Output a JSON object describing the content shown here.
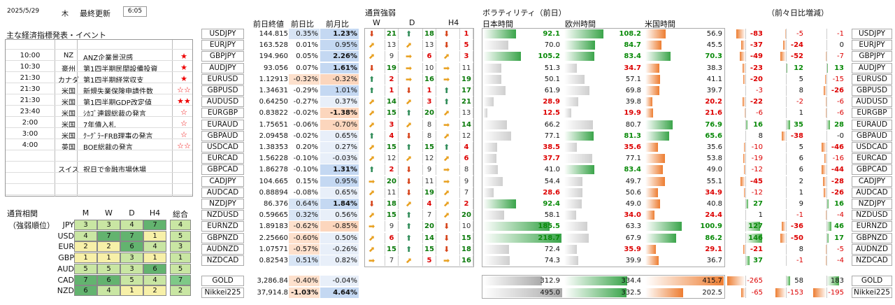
{
  "header": {
    "date": "2025/5/29",
    "weekday": "木",
    "updated_label": "最終更新",
    "time": "6:05"
  },
  "events": {
    "title": "主な経済指標発表・イベント",
    "rows": [
      {
        "time": "10:00",
        "country": "NZ",
        "event": "ANZ企業景況感",
        "stars": "★"
      },
      {
        "time": "10:30",
        "country": "豪州",
        "event": "第1四半期民間設備投資",
        "stars": "★"
      },
      {
        "time": "21:30",
        "country": "カナダ",
        "event": "第1四半期経常収支",
        "stars": "★"
      },
      {
        "time": "21:30",
        "country": "米国",
        "event": "新規失業保険申請件数",
        "stars": "☆☆"
      },
      {
        "time": "21:30",
        "country": "米国",
        "event": "第1四半期GDP改定値",
        "stars": "★★"
      },
      {
        "time": "23:40",
        "country": "米国",
        "event": "ｼｶｺﾞ連銀総裁の発言",
        "stars": "☆"
      },
      {
        "time": "2:00",
        "country": "米国",
        "event": "7年債入札",
        "stars": "☆"
      },
      {
        "time": "3:00",
        "country": "米国",
        "event": "ｸｰｸﾞﾗｰFRB理事の発言",
        "stars": "☆"
      },
      {
        "time": "4:00",
        "country": "英国",
        "event": "BOE総裁の発言",
        "stars": "☆☆"
      },
      {
        "time": "",
        "country": "",
        "event": "",
        "stars": ""
      },
      {
        "time": "",
        "country": "スイス",
        "event": "祝日で金融市場休場",
        "stars": ""
      },
      {
        "time": "",
        "country": "",
        "event": "",
        "stars": ""
      },
      {
        "time": "",
        "country": "",
        "event": "",
        "stars": ""
      }
    ]
  },
  "currency_strength": {
    "title": "通貨相関",
    "subtitle": "（強弱順位）",
    "cols": [
      "M",
      "W",
      "D",
      "H4",
      "総合"
    ],
    "rows": [
      {
        "ccy": "JPY",
        "vals": [
          "3",
          "3",
          "4",
          "7",
          "4"
        ]
      },
      {
        "ccy": "USD",
        "vals": [
          "4",
          "7",
          "7",
          "1",
          "5"
        ]
      },
      {
        "ccy": "EUR",
        "vals": [
          "2",
          "2",
          "6",
          "4",
          "3"
        ]
      },
      {
        "ccy": "GBP",
        "vals": [
          "1",
          "1",
          "3",
          "1",
          "1"
        ]
      },
      {
        "ccy": "AUD",
        "vals": [
          "5",
          "5",
          "3",
          "6",
          "5"
        ]
      },
      {
        "ccy": "CAD",
        "vals": [
          "7",
          "6",
          "5",
          "4",
          "7"
        ]
      },
      {
        "ccy": "NZD",
        "vals": [
          "6",
          "4",
          "1",
          "2",
          "2"
        ]
      }
    ]
  },
  "prices": {
    "headers": [
      "前日終値",
      "前日比",
      "前月比"
    ],
    "rows": [
      {
        "pair": "USDJPY",
        "close": "144.815",
        "d": "0.35%",
        "m": "1.23%"
      },
      {
        "pair": "EURJPY",
        "close": "163.528",
        "d": "0.01%",
        "m": "0.95%"
      },
      {
        "pair": "GBPJPY",
        "close": "194.960",
        "d": "0.05%",
        "m": "2.26%"
      },
      {
        "pair": "AUDJPY",
        "close": "93.056",
        "d": "0.07%",
        "m": "1.61%"
      },
      {
        "pair": "EURUSD",
        "close": "1.12913",
        "d": "-0.32%",
        "m": "-0.32%"
      },
      {
        "pair": "GBPUSD",
        "close": "1.34631",
        "d": "-0.29%",
        "m": "1.01%"
      },
      {
        "pair": "AUDUSD",
        "close": "0.64250",
        "d": "-0.27%",
        "m": "0.37%"
      },
      {
        "pair": "EURGBP",
        "close": "0.83822",
        "d": "-0.02%",
        "m": "-1.38%"
      },
      {
        "pair": "EURAUD",
        "close": "1.75651",
        "d": "-0.06%",
        "m": "-0.70%"
      },
      {
        "pair": "GBPAUD",
        "close": "2.09458",
        "d": "-0.02%",
        "m": "0.65%"
      },
      {
        "pair": "USDCAD",
        "close": "1.38353",
        "d": "0.20%",
        "m": "0.27%"
      },
      {
        "pair": "EURCAD",
        "close": "1.56228",
        "d": "-0.10%",
        "m": "-0.03%"
      },
      {
        "pair": "GBPCAD",
        "close": "1.86278",
        "d": "-0.10%",
        "m": "1.31%"
      },
      {
        "pair": "CADJPY",
        "close": "104.665",
        "d": "0.15%",
        "m": "0.95%"
      },
      {
        "pair": "AUDCAD",
        "close": "0.88894",
        "d": "-0.08%",
        "m": "0.65%"
      },
      {
        "pair": "NZDJPY",
        "close": "86.376",
        "d": "0.64%",
        "m": "1.84%"
      },
      {
        "pair": "NZDUSD",
        "close": "0.59665",
        "d": "0.32%",
        "m": "0.56%"
      },
      {
        "pair": "EURNZD",
        "close": "1.89183",
        "d": "-0.62%",
        "m": "-0.85%"
      },
      {
        "pair": "GBPNZD",
        "close": "2.25660",
        "d": "-0.60%",
        "m": "0.50%"
      },
      {
        "pair": "AUDNZD",
        "close": "1.07571",
        "d": "-0.57%",
        "m": "-0.26%"
      },
      {
        "pair": "NZDCAD",
        "close": "0.82543",
        "d": "0.51%",
        "m": "0.82%"
      }
    ],
    "extra": [
      {
        "pair": "GOLD",
        "close": "3,286.84",
        "d": "-0.40%",
        "m": "-0.04%"
      },
      {
        "pair": "Nikkei225",
        "close": "37,914.8",
        "d": "-1.03%",
        "m": "4.64%"
      }
    ]
  },
  "strength": {
    "title": "通貨強弱",
    "cols": [
      "W",
      "D",
      "H4"
    ],
    "rows": [
      {
        "w": "down",
        "wn": "21",
        "d": "up",
        "dn": "18",
        "h": "down",
        "hn": "1"
      },
      {
        "w": "ne",
        "wn": "13",
        "d": "ne",
        "dn": "13",
        "h": "down",
        "hn": "5"
      },
      {
        "w": "ne",
        "wn": "9",
        "d": "right",
        "dn": "6",
        "h": "ne",
        "hn": "3"
      },
      {
        "w": "down",
        "wn": "19",
        "d": "right",
        "dn": "10",
        "h": "right",
        "hn": "11"
      },
      {
        "w": "up",
        "wn": "2",
        "d": "right",
        "dn": "16",
        "h": "right",
        "hn": "19"
      },
      {
        "w": "up",
        "wn": "1",
        "d": "down",
        "dn": "1",
        "h": "up",
        "hn": "17"
      },
      {
        "w": "ne",
        "wn": "14",
        "d": "ne",
        "dn": "3",
        "h": "up",
        "hn": "21"
      },
      {
        "w": "ne",
        "wn": "15",
        "d": "up",
        "dn": "20",
        "h": "ne",
        "hn": "13"
      },
      {
        "w": "ne",
        "wn": "3",
        "d": "ne",
        "dn": "8",
        "h": "right",
        "hn": "14"
      },
      {
        "w": "up",
        "wn": "4",
        "d": "down",
        "dn": "8",
        "h": "ne",
        "hn": "12"
      },
      {
        "w": "ne",
        "wn": "15",
        "d": "up",
        "dn": "15",
        "h": "up",
        "hn": "4"
      },
      {
        "w": "ne",
        "wn": "12",
        "d": "ne",
        "dn": "12",
        "h": "ne",
        "hn": "6"
      },
      {
        "w": "up",
        "wn": "2",
        "d": "down",
        "dn": "9",
        "h": "right",
        "hn": "8"
      },
      {
        "w": "right",
        "wn": "20",
        "d": "down",
        "dn": "11",
        "h": "right",
        "hn": "9"
      },
      {
        "w": "ne",
        "wn": "11",
        "d": "down",
        "dn": "19",
        "h": "ne",
        "hn": "7"
      },
      {
        "w": "down",
        "wn": "18",
        "d": "ne",
        "dn": "4",
        "h": "ne",
        "hn": "2"
      },
      {
        "w": "ne",
        "wn": "15",
        "d": "up",
        "dn": "7",
        "h": "ne",
        "hn": "20"
      },
      {
        "w": "right",
        "wn": "9",
        "d": "up",
        "dn": "20",
        "h": "down",
        "hn": "10"
      },
      {
        "w": "ne",
        "wn": "6",
        "d": "up",
        "dn": "14",
        "h": "down",
        "hn": "15"
      },
      {
        "w": "ne",
        "wn": "15",
        "d": "up",
        "dn": "15",
        "h": "down",
        "hn": "18"
      },
      {
        "w": "right",
        "wn": "7",
        "d": "ne",
        "dn": "5",
        "h": "right",
        "hn": "16"
      }
    ]
  },
  "volatility": {
    "title": "ボラティリティ（前日）",
    "sessions": [
      "日本時間",
      "欧州時間",
      "米国時間"
    ],
    "rows": [
      {
        "jp": "92.1",
        "eu": "108.2",
        "us": "56.9",
        "jpc": "g",
        "euc": "g",
        "usc": "n"
      },
      {
        "jp": "70.0",
        "eu": "84.7",
        "us": "45.5",
        "jpc": "n",
        "euc": "g",
        "usc": "n"
      },
      {
        "jp": "105.2",
        "eu": "83.4",
        "us": "70.3",
        "jpc": "g",
        "euc": "g",
        "usc": "g"
      },
      {
        "jp": "51.3",
        "eu": "34.7",
        "us": "38.3",
        "jpc": "n",
        "euc": "r",
        "usc": "n"
      },
      {
        "jp": "50.1",
        "eu": "57.1",
        "us": "41.1",
        "jpc": "n",
        "euc": "n",
        "usc": "n"
      },
      {
        "jp": "61.9",
        "eu": "69.8",
        "us": "39.7",
        "jpc": "n",
        "euc": "n",
        "usc": "n"
      },
      {
        "jp": "28.9",
        "eu": "39.8",
        "us": "20.2",
        "jpc": "r",
        "euc": "n",
        "usc": "r"
      },
      {
        "jp": "12.5",
        "eu": "19.9",
        "us": "21.6",
        "jpc": "r",
        "euc": "r",
        "usc": "r"
      },
      {
        "jp": "66.2",
        "eu": "80.7",
        "us": "76.9",
        "jpc": "n",
        "euc": "n",
        "usc": "g"
      },
      {
        "jp": "77.1",
        "eu": "81.3",
        "us": "65.6",
        "jpc": "n",
        "euc": "g",
        "usc": "g"
      },
      {
        "jp": "38.5",
        "eu": "35.6",
        "us": "35.6",
        "jpc": "r",
        "euc": "r",
        "usc": "n"
      },
      {
        "jp": "37.7",
        "eu": "77.1",
        "us": "53.8",
        "jpc": "r",
        "euc": "n",
        "usc": "n"
      },
      {
        "jp": "41.0",
        "eu": "83.4",
        "us": "49.0",
        "jpc": "n",
        "euc": "g",
        "usc": "n"
      },
      {
        "jp": "54.4",
        "eu": "49.7",
        "us": "55.1",
        "jpc": "n",
        "euc": "n",
        "usc": "n"
      },
      {
        "jp": "28.6",
        "eu": "50.6",
        "us": "34.9",
        "jpc": "r",
        "euc": "n",
        "usc": "r"
      },
      {
        "jp": "92.4",
        "eu": "49.0",
        "us": "40.8",
        "jpc": "g",
        "euc": "n",
        "usc": "n"
      },
      {
        "jp": "58.1",
        "eu": "34.0",
        "us": "24.4",
        "jpc": "n",
        "euc": "r",
        "usc": "r"
      },
      {
        "jp": "185.5",
        "eu": "63.3",
        "us": "100.9",
        "jpc": "g",
        "euc": "n",
        "usc": "g"
      },
      {
        "jp": "218.7",
        "eu": "67.9",
        "us": "86.2",
        "jpc": "g",
        "euc": "n",
        "usc": "g"
      },
      {
        "jp": "72.4",
        "eu": "35.9",
        "us": "29.1",
        "jpc": "n",
        "euc": "r",
        "usc": "r"
      },
      {
        "jp": "74.3",
        "eu": "39.9",
        "us": "36.7",
        "jpc": "n",
        "euc": "n",
        "usc": "n"
      }
    ],
    "extra": [
      {
        "jp": "312.9",
        "eu": "334.4",
        "us": "415.7"
      },
      {
        "jp": "495.0",
        "eu": "332.5",
        "us": "202.5"
      }
    ]
  },
  "change": {
    "title": "（前々日比増減）",
    "rows": [
      {
        "a": "-83",
        "b": "-5",
        "c": "-1"
      },
      {
        "a": "-37",
        "b": "-24",
        "c": "0"
      },
      {
        "a": "-49",
        "b": "-52",
        "c": "-7"
      },
      {
        "a": "-23",
        "b": "12",
        "c": "13"
      },
      {
        "a": "-20",
        "b": "5",
        "c": "-15"
      },
      {
        "a": "-3",
        "b": "8",
        "c": "-26"
      },
      {
        "a": "-22",
        "b": "-2",
        "c": "-6"
      },
      {
        "a": "-6",
        "b": "1",
        "c": "-6"
      },
      {
        "a": "16",
        "b": "35",
        "c": "28"
      },
      {
        "a": "8",
        "b": "-38",
        "c": "-0"
      },
      {
        "a": "-10",
        "b": "5",
        "c": "-46"
      },
      {
        "a": "-19",
        "b": "6",
        "c": "-16"
      },
      {
        "a": "-12",
        "b": "6",
        "c": "-44"
      },
      {
        "a": "-45",
        "b": "2",
        "c": "-28"
      },
      {
        "a": "-12",
        "b": "1",
        "c": "-26"
      },
      {
        "a": "27",
        "b": "9",
        "c": "16"
      },
      {
        "a": "1",
        "b": "-1",
        "c": "-4"
      },
      {
        "a": "127",
        "b": "-36",
        "c": "46"
      },
      {
        "a": "146",
        "b": "-50",
        "c": "17"
      },
      {
        "a": "-21",
        "b": "8",
        "c": "-5"
      },
      {
        "a": "37",
        "b": "-1",
        "c": "-4"
      }
    ],
    "extra": [
      {
        "a": "-265",
        "b": "58",
        "c": "183"
      },
      {
        "a": "-65",
        "b": "-153",
        "c": "-195"
      }
    ]
  }
}
